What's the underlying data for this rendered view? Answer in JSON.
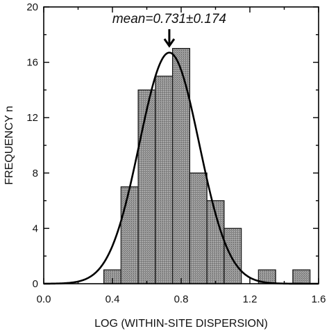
{
  "chart_data": {
    "type": "bar",
    "subtype": "histogram with fitted normal curve",
    "xlabel": "LOG (WITHIN-SITE DISPERSION)",
    "ylabel": "FREQUENCY n",
    "xlim": [
      0.0,
      1.6
    ],
    "ylim": [
      0,
      20
    ],
    "xticks": [
      "0.0",
      "0.4",
      "0.8",
      "1.2",
      "1.6"
    ],
    "yticks": [
      "0",
      "4",
      "8",
      "12",
      "16",
      "20"
    ],
    "bin_width": 0.1,
    "bins": [
      {
        "x0": 0.35,
        "x1": 0.45,
        "count": 1
      },
      {
        "x0": 0.45,
        "x1": 0.55,
        "count": 7
      },
      {
        "x0": 0.55,
        "x1": 0.65,
        "count": 14
      },
      {
        "x0": 0.65,
        "x1": 0.75,
        "count": 15
      },
      {
        "x0": 0.75,
        "x1": 0.85,
        "count": 17
      },
      {
        "x0": 0.85,
        "x1": 0.95,
        "count": 8
      },
      {
        "x0": 0.95,
        "x1": 1.05,
        "count": 6
      },
      {
        "x0": 1.05,
        "x1": 1.15,
        "count": 4
      },
      {
        "x0": 1.25,
        "x1": 1.35,
        "count": 1
      },
      {
        "x0": 1.45,
        "x1": 1.55,
        "count": 1
      }
    ],
    "curve": {
      "type": "normal",
      "mean": 0.731,
      "sd": 0.174,
      "peak": 16.7
    },
    "annotation": {
      "text": "mean=0.731±0.174",
      "x": 0.731
    },
    "grid": false,
    "legend": "none",
    "colors": {
      "bar_fill": "#8c8c8c",
      "bar_stroke": "#1a1a1a",
      "curve": "#000000",
      "axis": "#000000"
    }
  }
}
